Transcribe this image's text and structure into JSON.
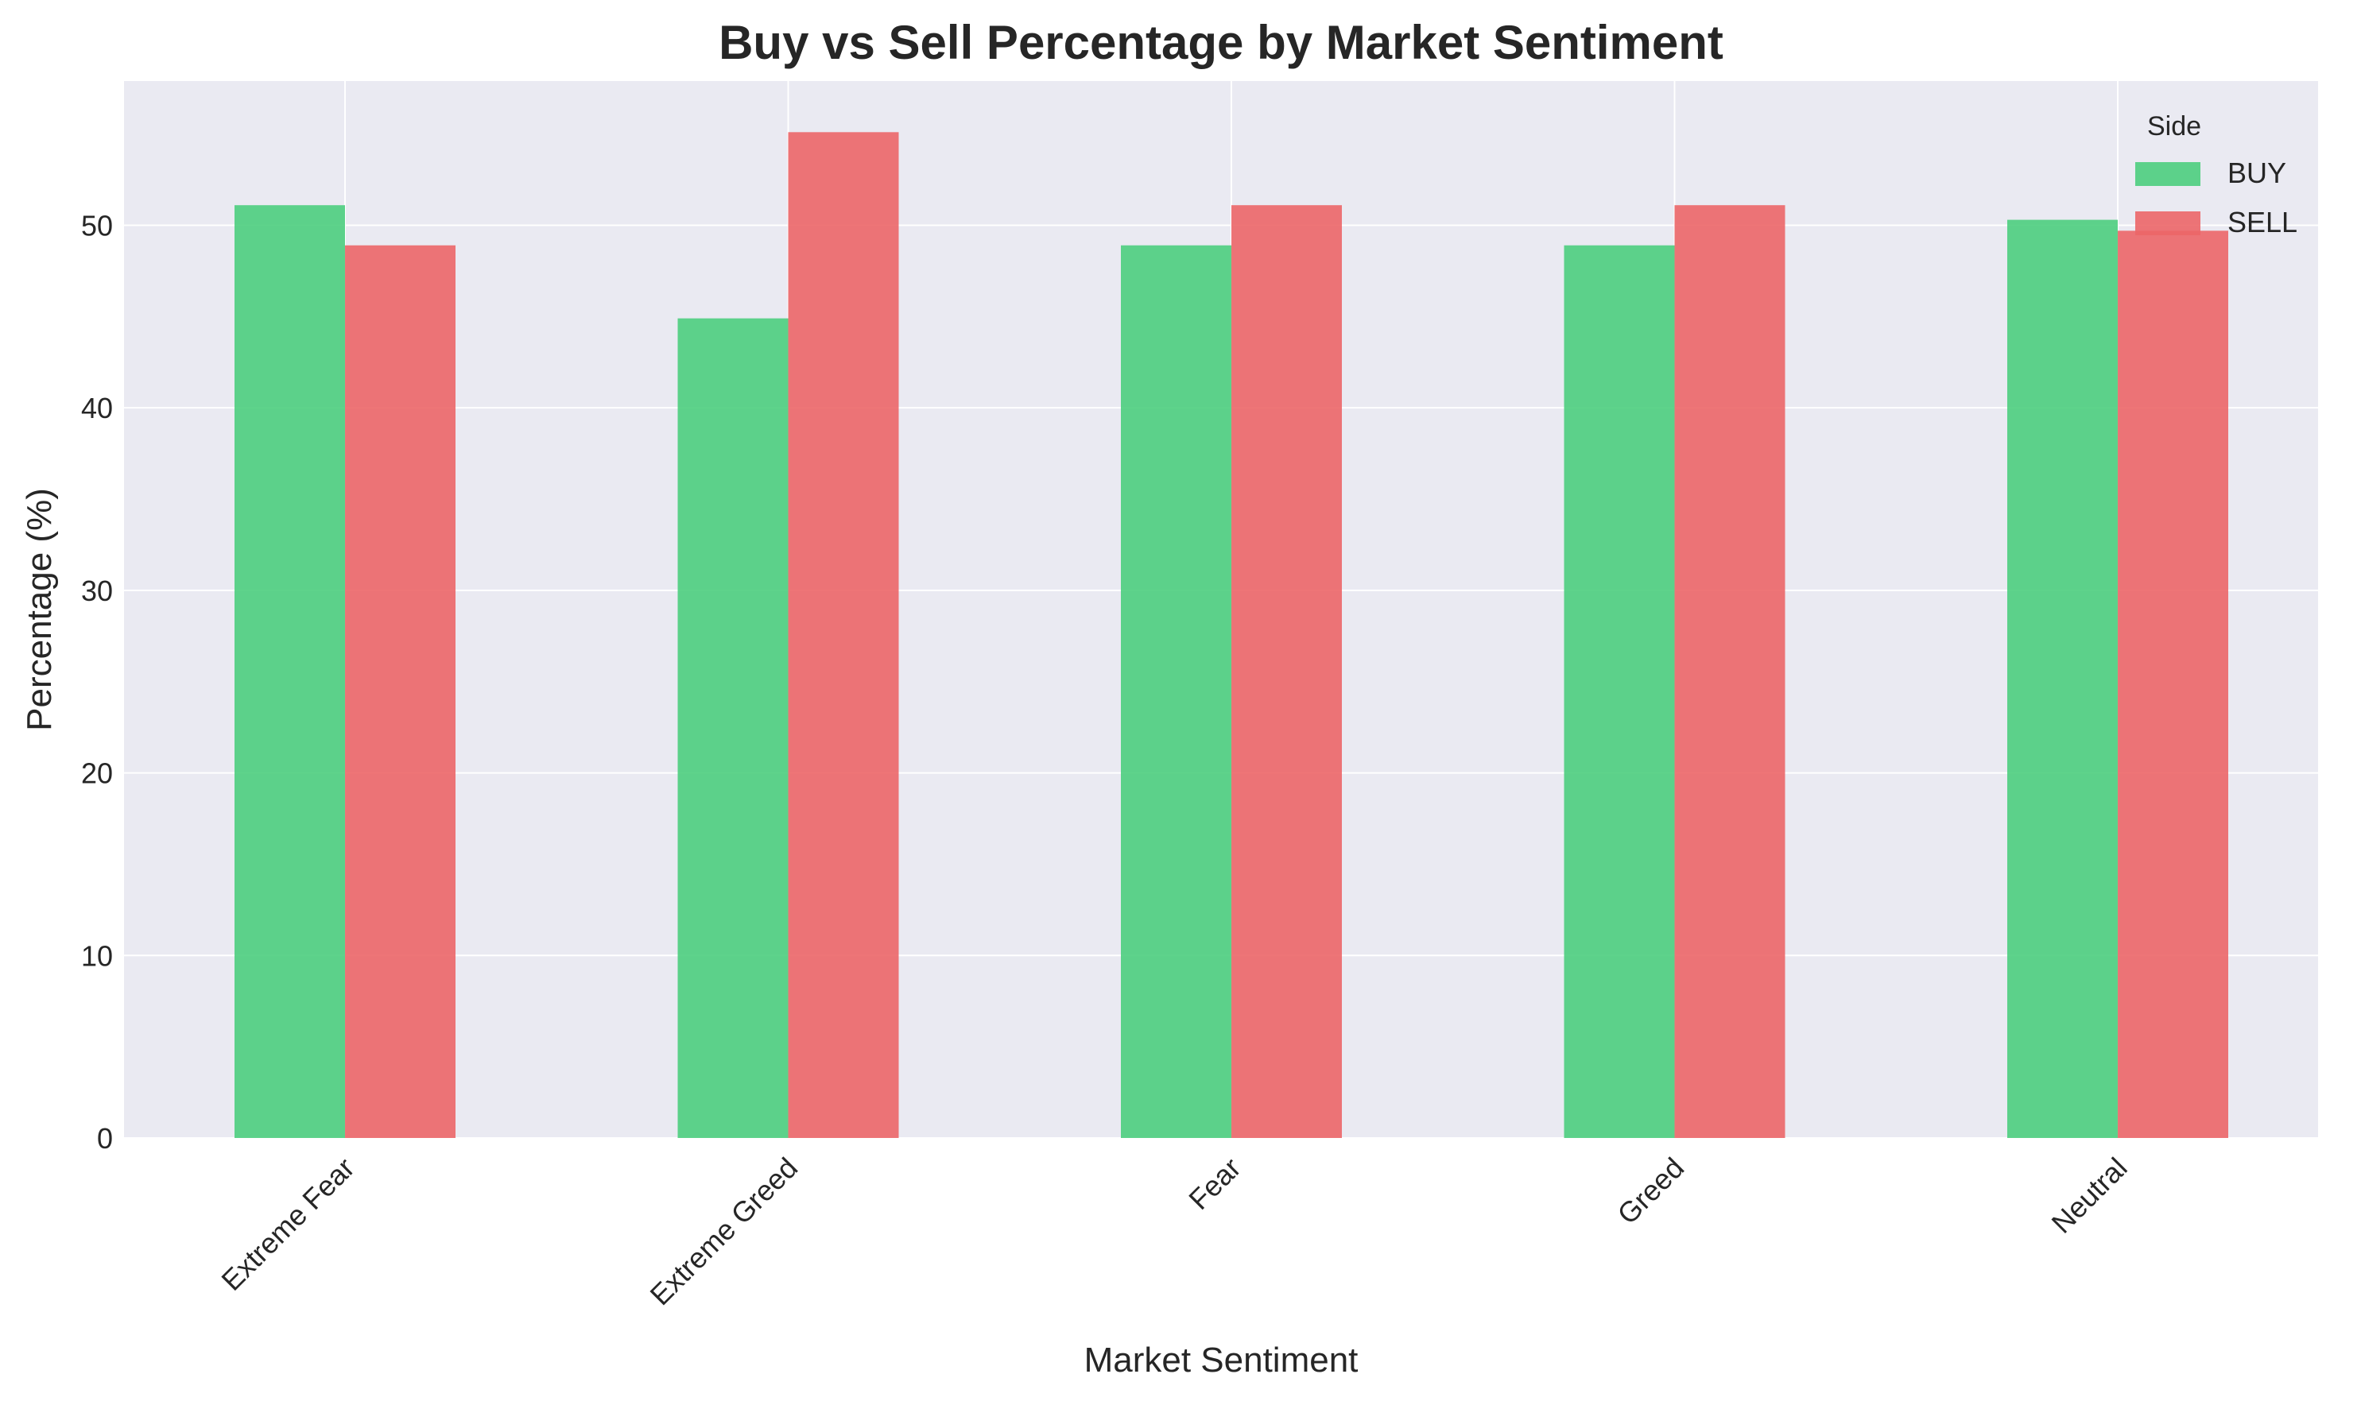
{
  "chart_data": {
    "type": "bar",
    "title": "Buy vs Sell Percentage by Market Sentiment",
    "xlabel": "Market Sentiment",
    "ylabel": "Percentage (%)",
    "categories": [
      "Extreme Fear",
      "Extreme Greed",
      "Fear",
      "Greed",
      "Neutral"
    ],
    "series": [
      {
        "name": "BUY",
        "values": [
          51.1,
          44.9,
          48.9,
          48.9,
          50.3
        ],
        "color": "#4cce7e"
      },
      {
        "name": "SELL",
        "values": [
          48.9,
          55.1,
          51.1,
          51.1,
          49.7
        ],
        "color": "#ec6668"
      }
    ],
    "ylim": [
      0,
      57.9
    ],
    "yticks": [
      0,
      10,
      20,
      30,
      40,
      50
    ],
    "grid": true,
    "legend": {
      "title": "Side",
      "placement": "top-right"
    },
    "colors": {
      "plot_background": "#eaeaf2",
      "grid": "#ffffff"
    }
  }
}
